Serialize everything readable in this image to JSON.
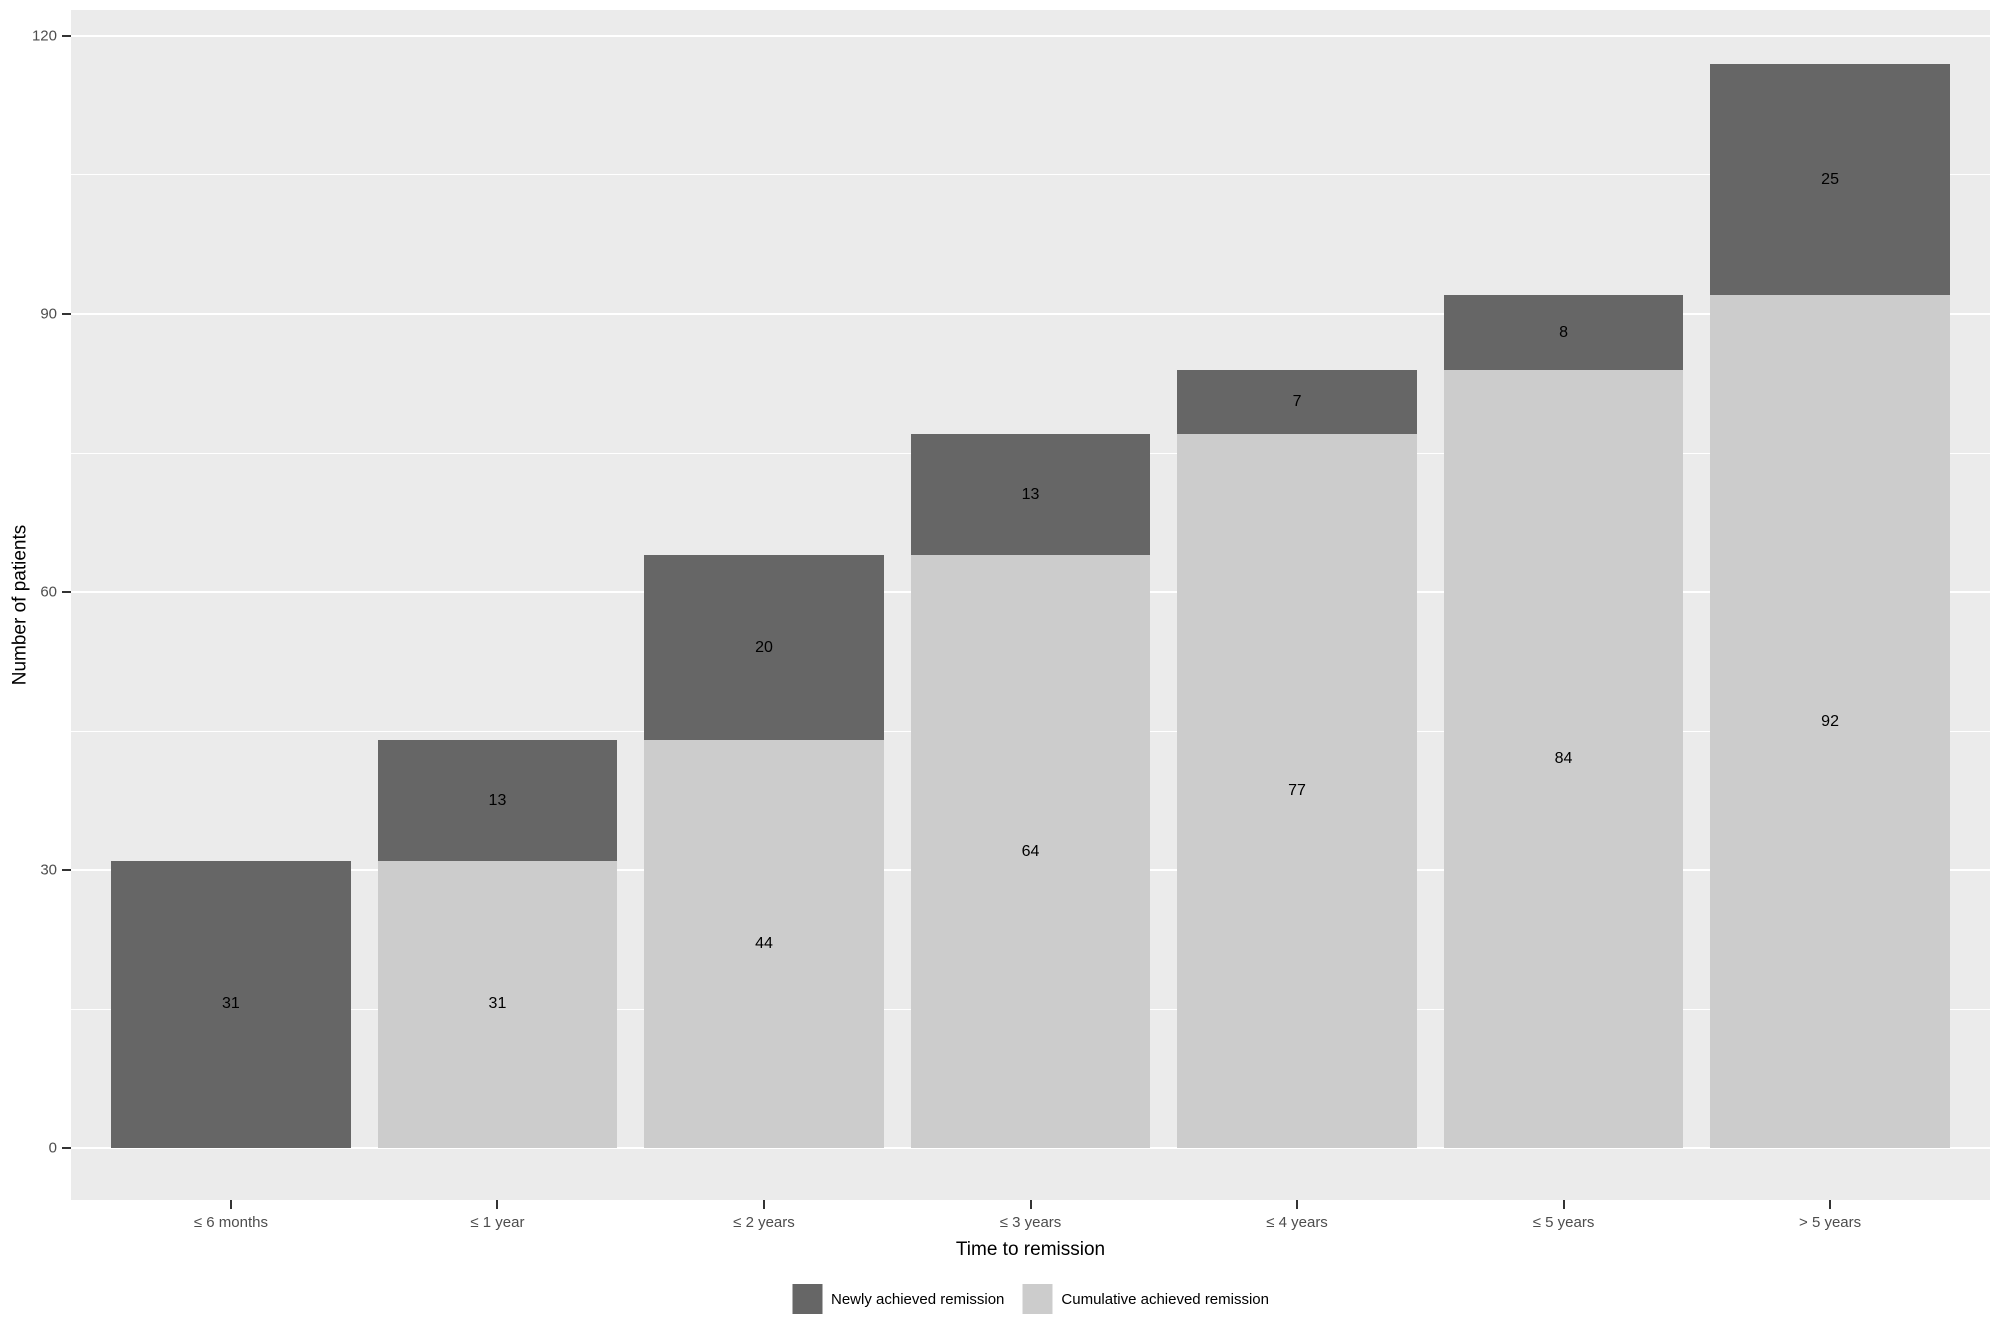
{
  "chart_data": {
    "type": "bar",
    "stacked": true,
    "title": "",
    "xlabel": "Time to remission",
    "ylabel": "Number of patients",
    "categories": [
      "≤ 6 months",
      "≤ 1 year",
      "≤ 2 years",
      "≤ 3 years",
      "≤ 4 years",
      "≤ 5 years",
      "> 5 years"
    ],
    "series": [
      {
        "name": "Cumulative achieved remission",
        "color": "#CCCCCC",
        "values": [
          0,
          31,
          44,
          64,
          77,
          84,
          92
        ]
      },
      {
        "name": "Newly achieved remission",
        "color": "#666666",
        "values": [
          31,
          13,
          20,
          13,
          7,
          8,
          25
        ]
      }
    ],
    "stack_totals": [
      31,
      44,
      64,
      77,
      84,
      92,
      117
    ],
    "segment_labels_shown": true,
    "y_ticks": [
      0,
      30,
      60,
      90,
      120
    ],
    "y_minor_ticks": [
      15,
      45,
      75,
      105
    ],
    "ylim": [
      -5.6,
      122.8
    ],
    "grid": "on",
    "legend_position": "bottom",
    "panel_bg_color": "#EBEBEB",
    "grid_color": "#FFFFFF",
    "tick_text_color": "#4D4D4D",
    "bar_label_color": "#000000"
  },
  "legend": {
    "items": [
      {
        "label": "Newly achieved remission",
        "color": "#666666"
      },
      {
        "label": "Cumulative achieved remission",
        "color": "#CCCCCC"
      }
    ]
  }
}
